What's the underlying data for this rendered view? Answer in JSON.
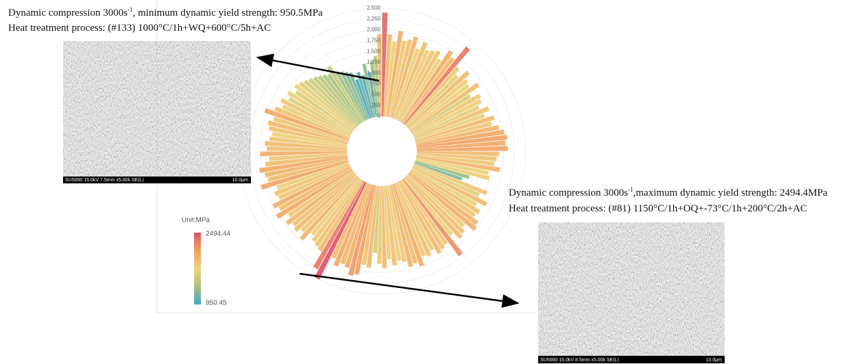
{
  "chart_data": {
    "type": "radial_bar",
    "ylim": [
      0,
      2500
    ],
    "yticks": [
      {
        "value": 2500,
        "label": "2,500"
      },
      {
        "value": 2250,
        "label": "2,250"
      },
      {
        "value": 2000,
        "label": "2,000"
      },
      {
        "value": 1750,
        "label": "1,750"
      },
      {
        "value": 1500,
        "label": "1,500"
      },
      {
        "value": 1250,
        "label": "1,250"
      },
      {
        "value": 1000,
        "label": "1,000"
      },
      750,
      500,
      250,
      0
    ],
    "grid": true,
    "colorscale": [
      "#46a6c2",
      "#a8c480",
      "#eed27a",
      "#f2a263",
      "#e0526a"
    ],
    "legend": {
      "title": "Unit:MPa",
      "max": 2494.44,
      "min": 950.45
    },
    "values": [
      2400,
      1900,
      1750,
      2000,
      1800,
      1850,
      1950,
      1700,
      1900,
      1750,
      1800,
      1850,
      1700,
      2000,
      1900,
      2300,
      1800,
      1650,
      1900,
      1750,
      1700,
      1900,
      1600,
      1800,
      1750,
      1650,
      1850,
      1700,
      1900,
      1800,
      1950,
      2050,
      2100,
      2050,
      2100,
      1900,
      1850,
      1800,
      1950,
      1700,
      1750,
      1300,
      1150,
      1800,
      1650,
      1900,
      1700,
      1850,
      1800,
      1950,
      2000,
      1750,
      1850,
      1900,
      1700,
      2200,
      1800,
      1850,
      1900,
      1750,
      1850,
      1800,
      2000,
      1900,
      1950,
      1800,
      1750,
      1850,
      1700,
      1900,
      1800,
      1550,
      1900,
      1850,
      2100,
      2150,
      2000,
      1950,
      2050,
      1900,
      2494.44,
      2300,
      1900,
      1850,
      1800,
      1700,
      1950,
      1800,
      1900,
      1850,
      1950,
      1800,
      2050,
      1900,
      2000,
      1800,
      1850,
      1750,
      2100,
      1900,
      1950,
      2050,
      1900,
      1800,
      2000,
      1850,
      1900,
      1800,
      1750,
      1850,
      1900,
      1800,
      2050,
      1850,
      1700,
      1800,
      1650,
      1750,
      1600,
      1700,
      1650,
      1600,
      1550,
      1500,
      1450,
      1400,
      1350,
      1500,
      1300,
      1250,
      1200,
      1150,
      950.45,
      1100,
      1000,
      1250,
      1050,
      1300,
      1400,
      1900
    ]
  },
  "annotations": [
    {
      "before": "Dynamic compression 3000s",
      "sup": "-1",
      "after": ", minimum dynamic yield strength: 950.5MPa",
      "process": "Heat treatment process: (#133) 1000°C/1h+WQ+600°C/5h+AC",
      "caption": "SU5000 15.0kV 7.5mm x5.00k SE(L)",
      "scale": "10.0μm"
    },
    {
      "before": "Dynamic compression 3000s",
      "sup": "-1",
      "after": ",maximum dynamic yield strength: 2494.4MPa",
      "process": "Heat treatment process: (#81) 1150°C/1h+OQ+-73°C/1h+200°C/2h+AC",
      "caption": "SU5000 15.0kV 8.5mm x5.00k SE(L)",
      "scale": "10.0μm"
    }
  ]
}
